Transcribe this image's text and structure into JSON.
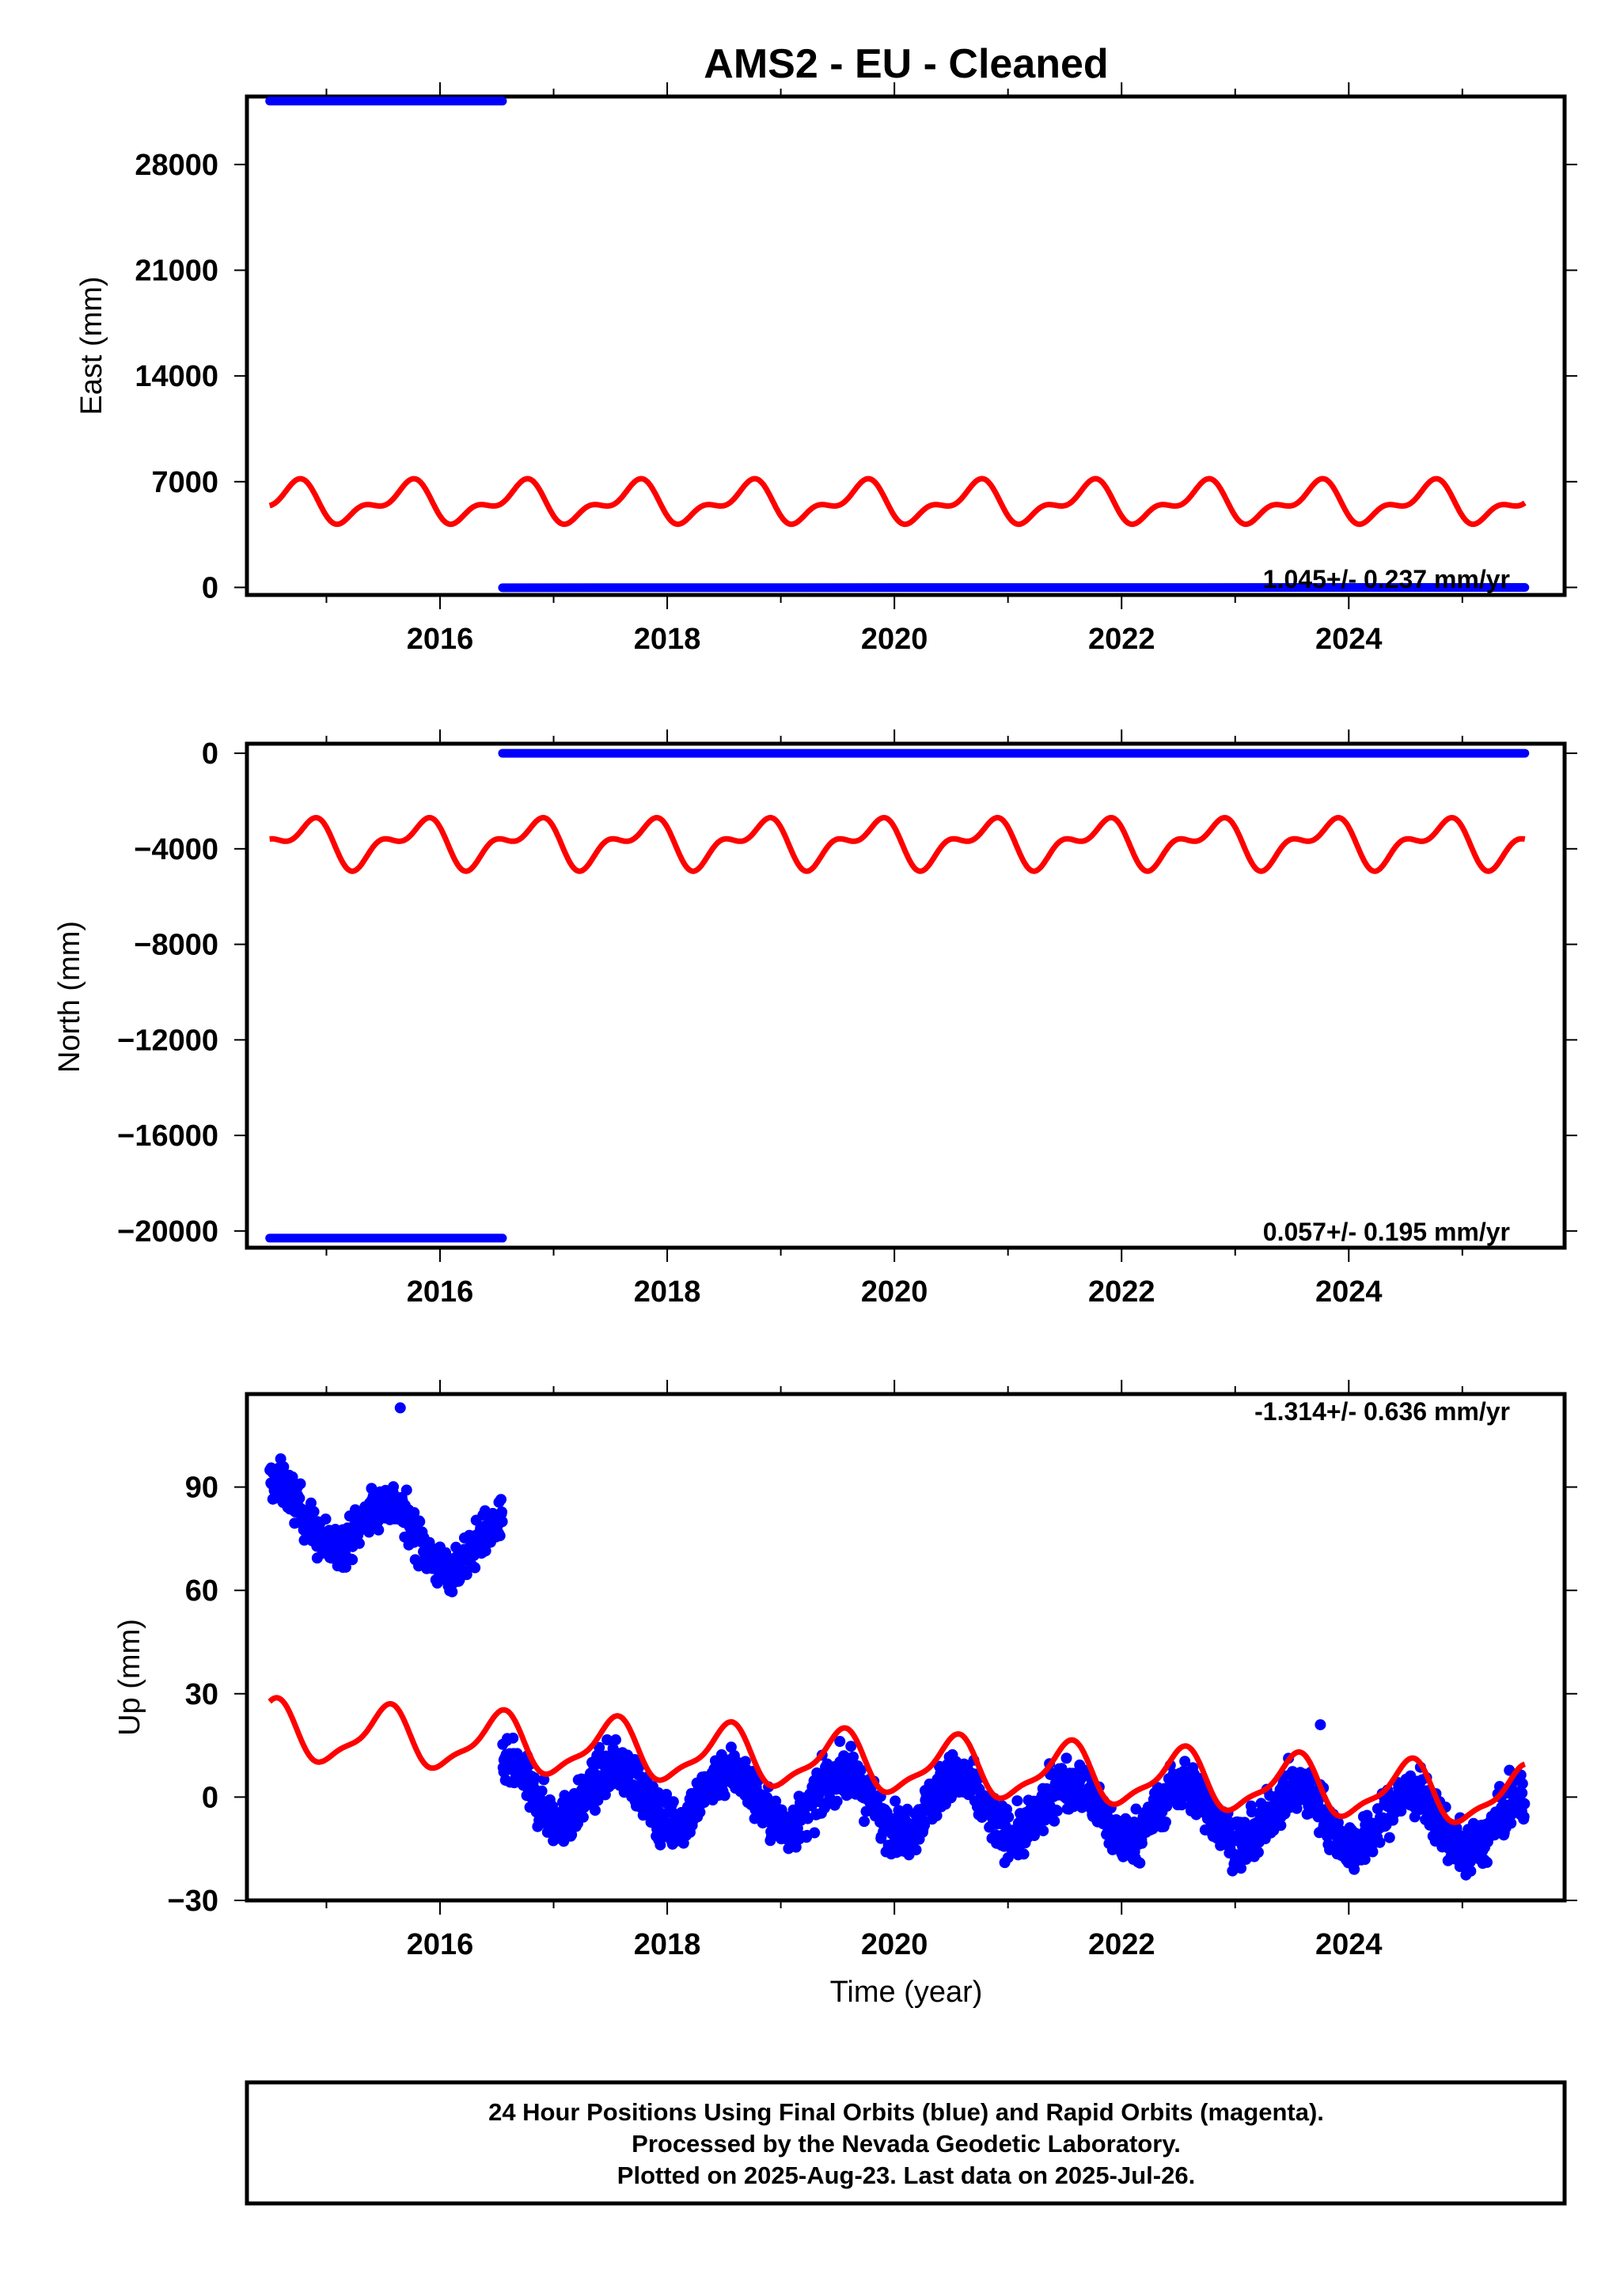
{
  "chart_data": [
    {
      "type": "scatter",
      "title": "AMS2  - EU - Cleaned",
      "ylabel": "East (mm)",
      "xlabel": "",
      "xlim": [
        2014.3,
        2025.9
      ],
      "ylim": [
        -500,
        32500
      ],
      "x_ticks": [
        "2016",
        "2018",
        "2020",
        "2022",
        "2024"
      ],
      "y_ticks": [
        0,
        7000,
        14000,
        21000,
        28000
      ],
      "y_tick_labels": [
        "0",
        "7000",
        "14000",
        "21000",
        "28000"
      ],
      "rate_label": "1.045+/- 0.237 mm/yr",
      "grid": false,
      "series": [
        {
          "segments": [
            {
              "x": [
                2014.5,
                2016.55
              ],
              "y": [
                32200,
                32200
              ]
            },
            {
              "x": [
                2016.55,
                2025.55
              ],
              "y": [
                -20,
                0
              ]
            }
          ],
          "color": "#0000ff",
          "kind": "daily-points"
        },
        {
          "mean": 5600,
          "annual_amp": 1100,
          "semi_amp": 650,
          "phase": 0.7,
          "semi_phase": 0.3,
          "x_range": [
            2014.5,
            2025.55
          ],
          "color": "#ff0000",
          "kind": "seasonal-model"
        }
      ]
    },
    {
      "type": "scatter",
      "title": "",
      "ylabel": "North (mm)",
      "xlabel": "",
      "xlim": [
        2014.3,
        2025.9
      ],
      "ylim": [
        -20700,
        400
      ],
      "x_ticks": [
        "2016",
        "2018",
        "2020",
        "2022",
        "2024"
      ],
      "y_ticks": [
        0,
        -4000,
        -8000,
        -12000,
        -16000,
        -20000
      ],
      "y_tick_labels": [
        "0",
        "−4000",
        "−8000",
        "−12000",
        "−16000",
        "−20000"
      ],
      "rate_label": "0.057+/- 0.195 mm/yr",
      "grid": false,
      "series": [
        {
          "segments": [
            {
              "x": [
                2014.5,
                2016.55
              ],
              "y": [
                -20300,
                -20300
              ]
            },
            {
              "x": [
                2016.55,
                2025.55
              ],
              "y": [
                0,
                0
              ]
            }
          ],
          "color": "#0000ff",
          "kind": "daily-points"
        },
        {
          "mean": -3750,
          "annual_amp": 800,
          "semi_amp": 500,
          "phase": 0.8,
          "semi_phase": 0.45,
          "x_range": [
            2014.5,
            2025.55
          ],
          "color": "#ff0000",
          "kind": "seasonal-model"
        }
      ]
    },
    {
      "type": "scatter",
      "title": "",
      "ylabel": "Up (mm)",
      "xlabel": "Time (year)",
      "xlim": [
        2014.3,
        2025.9
      ],
      "ylim": [
        -30,
        117
      ],
      "x_ticks": [
        "2016",
        "2018",
        "2020",
        "2022",
        "2024"
      ],
      "y_ticks": [
        -30,
        0,
        30,
        60,
        90
      ],
      "y_tick_labels": [
        "−30",
        "0",
        "30",
        "60",
        "90"
      ],
      "rate_label": "-1.314+/- 0.636 mm/yr",
      "grid": false,
      "series": [
        {
          "name": "",
          "color": "#0000ff",
          "kind": "daily-points",
          "segments": [
            {
              "x": [
                2014.5,
                2016.55
              ],
              "y_start": 84,
              "y_end": 71,
              "annual_amp": 8,
              "noise": 4.5
            },
            {
              "x": [
                2016.55,
                2025.55
              ],
              "y_start": 2,
              "y_end": -8,
              "annual_amp": 8,
              "noise": 5
            }
          ],
          "outliers": [
            {
              "x": 2015.65,
              "y": 113
            },
            {
              "x": 2023.75,
              "y": 21
            }
          ]
        },
        {
          "color": "#ff0000",
          "kind": "seasonal-model",
          "x_range": [
            2014.5,
            2025.55
          ],
          "y_start": 19,
          "slope": -1.75,
          "annual_amp": 8,
          "semi_amp": 2.5,
          "phase": 0.52,
          "semi_phase": 0.1,
          "offset_break": 2016.55
        }
      ]
    }
  ],
  "footer": {
    "line1": "24 Hour Positions Using Final Orbits (blue) and Rapid Orbits (magenta).",
    "line2": "Processed by the Nevada Geodetic Laboratory.",
    "line3": "Plotted on 2025-Aug-23. Last data on 2025-Jul-26."
  }
}
